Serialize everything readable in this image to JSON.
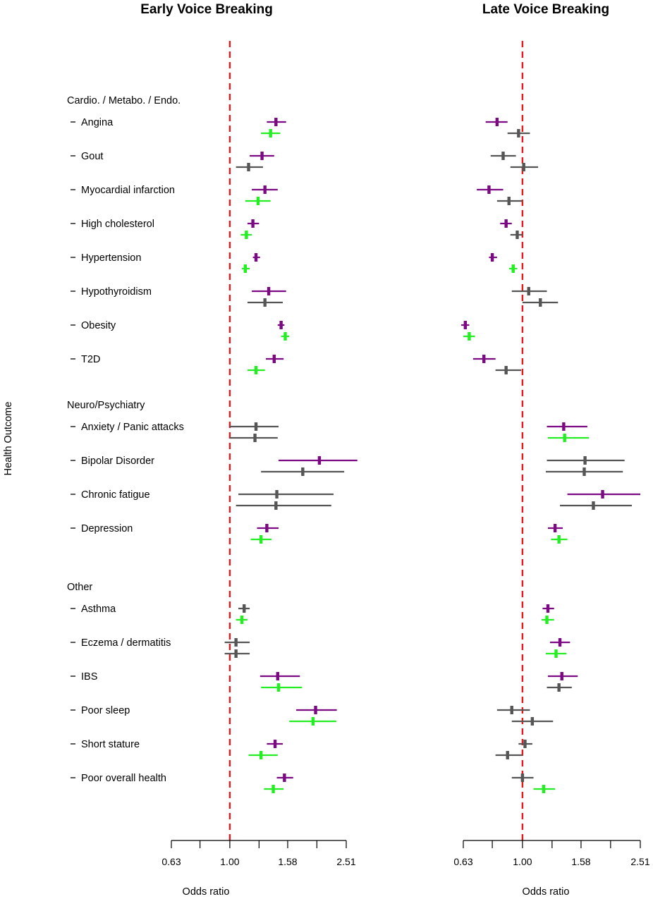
{
  "chart_data": {
    "type": "forest",
    "y_axis_title": "Health Outcome",
    "x_axis_title": "Odds ratio",
    "x_scale": "log",
    "reference_line": 1.0,
    "x_ticks": [
      "0.63",
      "1.00",
      "1.58",
      "2.51"
    ],
    "x_tick_values": [
      0.63,
      1.0,
      1.58,
      2.51
    ],
    "minor_ticks": [
      0.79,
      1.26,
      1.99
    ],
    "xlim": [
      0.63,
      2.51
    ],
    "colors": {
      "purple": "#7b0a82",
      "green": "#22ee22",
      "grey": "#555555",
      "reference": "#e41a1c"
    },
    "groups": [
      {
        "label": "Cardio. / Metabo. / Endo.",
        "outcomes": [
          {
            "name": "Angina",
            "early": [
              {
                "or": 1.44,
                "lo": 1.34,
                "hi": 1.56,
                "color": "purple"
              },
              {
                "or": 1.38,
                "lo": 1.28,
                "hi": 1.49,
                "color": "green"
              }
            ],
            "late": [
              {
                "or": 0.82,
                "lo": 0.75,
                "hi": 0.89,
                "color": "purple"
              },
              {
                "or": 0.97,
                "lo": 0.89,
                "hi": 1.06,
                "color": "grey"
              }
            ]
          },
          {
            "name": "Gout",
            "early": [
              {
                "or": 1.29,
                "lo": 1.17,
                "hi": 1.42,
                "color": "purple"
              },
              {
                "or": 1.16,
                "lo": 1.05,
                "hi": 1.3,
                "color": "grey"
              }
            ],
            "late": [
              {
                "or": 0.86,
                "lo": 0.78,
                "hi": 0.95,
                "color": "grey"
              },
              {
                "or": 1.01,
                "lo": 0.91,
                "hi": 1.13,
                "color": "grey"
              }
            ]
          },
          {
            "name": "Myocardial infarction",
            "early": [
              {
                "or": 1.32,
                "lo": 1.19,
                "hi": 1.46,
                "color": "purple"
              },
              {
                "or": 1.25,
                "lo": 1.13,
                "hi": 1.38,
                "color": "green"
              }
            ],
            "late": [
              {
                "or": 0.77,
                "lo": 0.7,
                "hi": 0.86,
                "color": "purple"
              },
              {
                "or": 0.9,
                "lo": 0.82,
                "hi": 1.0,
                "color": "grey"
              }
            ]
          },
          {
            "name": "High cholesterol",
            "early": [
              {
                "or": 1.2,
                "lo": 1.15,
                "hi": 1.26,
                "color": "purple"
              },
              {
                "or": 1.14,
                "lo": 1.09,
                "hi": 1.19,
                "color": "green"
              }
            ],
            "late": [
              {
                "or": 0.88,
                "lo": 0.84,
                "hi": 0.92,
                "color": "purple"
              },
              {
                "or": 0.96,
                "lo": 0.91,
                "hi": 1.0,
                "color": "grey"
              }
            ]
          },
          {
            "name": "Hypertension",
            "early": [
              {
                "or": 1.23,
                "lo": 1.2,
                "hi": 1.27,
                "color": "purple"
              },
              {
                "or": 1.13,
                "lo": 1.1,
                "hi": 1.17,
                "color": "green"
              }
            ],
            "late": [
              {
                "or": 0.79,
                "lo": 0.77,
                "hi": 0.82,
                "color": "purple"
              },
              {
                "or": 0.93,
                "lo": 0.9,
                "hi": 0.96,
                "color": "green"
              }
            ]
          },
          {
            "name": "Hypothyroidism",
            "early": [
              {
                "or": 1.36,
                "lo": 1.19,
                "hi": 1.56,
                "color": "purple"
              },
              {
                "or": 1.32,
                "lo": 1.15,
                "hi": 1.52,
                "color": "grey"
              }
            ],
            "late": [
              {
                "or": 1.05,
                "lo": 0.92,
                "hi": 1.21,
                "color": "grey"
              },
              {
                "or": 1.15,
                "lo": 1.0,
                "hi": 1.32,
                "color": "grey"
              }
            ]
          },
          {
            "name": "Obesity",
            "early": [
              {
                "or": 1.5,
                "lo": 1.46,
                "hi": 1.54,
                "color": "purple"
              },
              {
                "or": 1.55,
                "lo": 1.5,
                "hi": 1.6,
                "color": "green"
              }
            ],
            "late": [
              {
                "or": 0.64,
                "lo": 0.62,
                "hi": 0.66,
                "color": "purple"
              },
              {
                "or": 0.66,
                "lo": 0.63,
                "hi": 0.69,
                "color": "green"
              }
            ]
          },
          {
            "name": "T2D",
            "early": [
              {
                "or": 1.42,
                "lo": 1.33,
                "hi": 1.53,
                "color": "purple"
              },
              {
                "or": 1.23,
                "lo": 1.15,
                "hi": 1.32,
                "color": "green"
              }
            ],
            "late": [
              {
                "or": 0.74,
                "lo": 0.68,
                "hi": 0.81,
                "color": "purple"
              },
              {
                "or": 0.88,
                "lo": 0.81,
                "hi": 0.99,
                "color": "grey"
              }
            ]
          }
        ]
      },
      {
        "label": "Neuro/Psychiatry",
        "outcomes": [
          {
            "name": "Anxiety / Panic attacks",
            "early": [
              {
                "or": 1.23,
                "lo": 1.0,
                "hi": 1.47,
                "color": "grey"
              },
              {
                "or": 1.22,
                "lo": 1.0,
                "hi": 1.46,
                "color": "grey"
              }
            ],
            "late": [
              {
                "or": 1.38,
                "lo": 1.21,
                "hi": 1.66,
                "color": "purple"
              },
              {
                "or": 1.39,
                "lo": 1.22,
                "hi": 1.68,
                "color": "green"
              }
            ]
          },
          {
            "name": "Bipolar Disorder",
            "early": [
              {
                "or": 2.03,
                "lo": 1.47,
                "hi": 2.74,
                "color": "purple"
              },
              {
                "or": 1.78,
                "lo": 1.28,
                "hi": 2.47,
                "color": "grey"
              }
            ],
            "late": [
              {
                "or": 1.63,
                "lo": 1.21,
                "hi": 2.22,
                "color": "grey"
              },
              {
                "or": 1.62,
                "lo": 1.2,
                "hi": 2.19,
                "color": "grey"
              }
            ]
          },
          {
            "name": "Chronic fatigue",
            "early": [
              {
                "or": 1.45,
                "lo": 1.07,
                "hi": 2.27,
                "color": "grey"
              },
              {
                "or": 1.44,
                "lo": 1.05,
                "hi": 2.23,
                "color": "grey"
              }
            ],
            "late": [
              {
                "or": 1.87,
                "lo": 1.42,
                "hi": 2.51,
                "color": "purple"
              },
              {
                "or": 1.74,
                "lo": 1.34,
                "hi": 2.35,
                "color": "grey"
              }
            ]
          },
          {
            "name": "Depression",
            "early": [
              {
                "or": 1.34,
                "lo": 1.24,
                "hi": 1.47,
                "color": "purple"
              },
              {
                "or": 1.28,
                "lo": 1.18,
                "hi": 1.39,
                "color": "green"
              }
            ],
            "late": [
              {
                "or": 1.29,
                "lo": 1.22,
                "hi": 1.37,
                "color": "purple"
              },
              {
                "or": 1.33,
                "lo": 1.25,
                "hi": 1.42,
                "color": "green"
              }
            ]
          }
        ]
      },
      {
        "label": "Other",
        "outcomes": [
          {
            "name": "Asthma",
            "early": [
              {
                "or": 1.12,
                "lo": 1.07,
                "hi": 1.17,
                "color": "grey"
              },
              {
                "or": 1.1,
                "lo": 1.05,
                "hi": 1.15,
                "color": "green"
              }
            ],
            "late": [
              {
                "or": 1.22,
                "lo": 1.17,
                "hi": 1.28,
                "color": "purple"
              },
              {
                "or": 1.21,
                "lo": 1.16,
                "hi": 1.28,
                "color": "green"
              }
            ]
          },
          {
            "name": "Eczema / dermatitis",
            "early": [
              {
                "or": 1.05,
                "lo": 0.96,
                "hi": 1.17,
                "color": "grey"
              },
              {
                "or": 1.05,
                "lo": 0.96,
                "hi": 1.17,
                "color": "grey"
              }
            ],
            "late": [
              {
                "or": 1.34,
                "lo": 1.24,
                "hi": 1.45,
                "color": "purple"
              },
              {
                "or": 1.3,
                "lo": 1.2,
                "hi": 1.41,
                "color": "green"
              }
            ]
          },
          {
            "name": "IBS",
            "early": [
              {
                "or": 1.46,
                "lo": 1.27,
                "hi": 1.74,
                "color": "purple"
              },
              {
                "or": 1.47,
                "lo": 1.28,
                "hi": 1.77,
                "color": "green"
              }
            ],
            "late": [
              {
                "or": 1.36,
                "lo": 1.22,
                "hi": 1.54,
                "color": "purple"
              },
              {
                "or": 1.33,
                "lo": 1.21,
                "hi": 1.47,
                "color": "grey"
              }
            ]
          },
          {
            "name": "Poor sleep",
            "early": [
              {
                "or": 1.97,
                "lo": 1.69,
                "hi": 2.33,
                "color": "purple"
              },
              {
                "or": 1.93,
                "lo": 1.6,
                "hi": 2.32,
                "color": "green"
              }
            ],
            "late": [
              {
                "or": 0.92,
                "lo": 0.82,
                "hi": 1.06,
                "color": "grey"
              },
              {
                "or": 1.08,
                "lo": 0.92,
                "hi": 1.27,
                "color": "grey"
              }
            ]
          },
          {
            "name": "Short stature",
            "early": [
              {
                "or": 1.43,
                "lo": 1.34,
                "hi": 1.52,
                "color": "purple"
              },
              {
                "or": 1.28,
                "lo": 1.16,
                "hi": 1.46,
                "color": "green"
              }
            ],
            "late": [
              {
                "or": 1.02,
                "lo": 0.97,
                "hi": 1.08,
                "color": "grey"
              },
              {
                "or": 0.89,
                "lo": 0.81,
                "hi": 1.0,
                "color": "grey"
              }
            ]
          },
          {
            "name": "Poor overall health",
            "early": [
              {
                "or": 1.54,
                "lo": 1.45,
                "hi": 1.65,
                "color": "purple"
              },
              {
                "or": 1.41,
                "lo": 1.31,
                "hi": 1.53,
                "color": "green"
              }
            ],
            "late": [
              {
                "or": 1.0,
                "lo": 0.92,
                "hi": 1.09,
                "color": "grey"
              },
              {
                "or": 1.18,
                "lo": 1.09,
                "hi": 1.29,
                "color": "green"
              }
            ]
          }
        ]
      }
    ],
    "panels": [
      {
        "key": "early",
        "title": "Early Voice Breaking"
      },
      {
        "key": "late",
        "title": "Late Voice Breaking"
      }
    ]
  }
}
